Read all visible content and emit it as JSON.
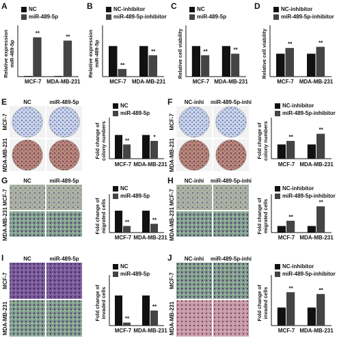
{
  "chart_data": [
    {
      "type": "bar",
      "panel": "A",
      "ylabel": [
        "Relative expression",
        "miR-489-5p"
      ],
      "categories": [
        "MCF-7",
        "MDA-MB-231"
      ],
      "ylim": [
        0,
        70
      ],
      "series": [
        {
          "name": "NC",
          "color": "#111111",
          "values": [
            1,
            1
          ]
        },
        {
          "name": "miR-489-5p",
          "color": "#444444",
          "values": [
            60,
            55
          ],
          "significance": [
            "**",
            "**"
          ]
        }
      ]
    },
    {
      "type": "bar",
      "panel": "B",
      "ylabel": [
        "Relative expression",
        "miR-489-5p"
      ],
      "categories": [
        "MCF-7",
        "MDA-MB-231"
      ],
      "ylim": [
        0,
        1.5
      ],
      "series": [
        {
          "name": "NC-inhibitor",
          "color": "#111111",
          "values": [
            1,
            1
          ]
        },
        {
          "name": "miR-489-5p-inhibitor",
          "color": "#444444",
          "values": [
            0.25,
            0.7
          ],
          "significance": [
            "**",
            "**"
          ]
        }
      ]
    },
    {
      "type": "bar",
      "panel": "C",
      "ylabel": [
        "Relative cell viability"
      ],
      "categories": [
        "MCF-7",
        "MDA-MB-231"
      ],
      "ylim": [
        0,
        1.5
      ],
      "series": [
        {
          "name": "NC",
          "color": "#111111",
          "values": [
            1,
            1
          ]
        },
        {
          "name": "miR-489-5p",
          "color": "#444444",
          "values": [
            0.7,
            0.75
          ],
          "significance": [
            "**",
            "**"
          ]
        }
      ]
    },
    {
      "type": "bar",
      "panel": "D",
      "ylabel": [
        "Relative cell viability"
      ],
      "categories": [
        "MCF-7",
        "MDA-MB-231"
      ],
      "ylim": [
        0,
        2
      ],
      "series": [
        {
          "name": "NC-inhibitor",
          "color": "#111111",
          "values": [
            1,
            1
          ]
        },
        {
          "name": "miR-489-5p-inhibitor",
          "color": "#444444",
          "values": [
            1.25,
            1.3
          ],
          "significance": [
            "**",
            "**"
          ]
        }
      ]
    },
    {
      "type": "bar",
      "panel": "E",
      "ylabel": [
        "Fold change of",
        "colony numbers"
      ],
      "categories": [
        "MCF-7",
        "MDA-MB-231"
      ],
      "ylim": [
        0,
        1.5
      ],
      "image_columns": [
        "NC",
        "miR-489-5p"
      ],
      "image_rows": [
        "MCF-7",
        "MDA-MB-231"
      ],
      "series": [
        {
          "name": "NC",
          "color": "#111111",
          "values": [
            1,
            1
          ]
        },
        {
          "name": "miR-489-5p",
          "color": "#444444",
          "values": [
            0.6,
            0.75
          ],
          "significance": [
            "**",
            "*"
          ]
        }
      ]
    },
    {
      "type": "bar",
      "panel": "F",
      "ylabel": [
        "Fold change of",
        "colony numbers"
      ],
      "categories": [
        "MCF-7",
        "MDA-MB-231"
      ],
      "ylim": [
        0,
        2.5
      ],
      "image_columns": [
        "NC-inhi",
        "miR-489-5p-inhi"
      ],
      "image_rows": [
        "MCF-7",
        "MDA-MB-231"
      ],
      "series": [
        {
          "name": "NC-inhibitor",
          "color": "#111111",
          "values": [
            1,
            1
          ]
        },
        {
          "name": "miR-489-5p-inhibitor",
          "color": "#444444",
          "values": [
            1.25,
            1.75
          ],
          "significance": [
            "**",
            "**"
          ]
        }
      ]
    },
    {
      "type": "bar",
      "panel": "G",
      "ylabel": [
        "Fold change of",
        "migrated cells"
      ],
      "categories": [
        "MCF-7",
        "MDA-MB-231"
      ],
      "ylim": [
        0,
        1.5
      ],
      "image_columns": [
        "NC",
        "miR-489-5p"
      ],
      "image_rows": [
        "MCF-7",
        "MDA-MB-231"
      ],
      "series": [
        {
          "name": "NC",
          "color": "#111111",
          "values": [
            1,
            1
          ]
        },
        {
          "name": "miR-489-5p",
          "color": "#444444",
          "values": [
            0.3,
            0.4
          ],
          "significance": [
            "**",
            "**"
          ]
        }
      ]
    },
    {
      "type": "bar",
      "panel": "H",
      "ylabel": [
        "Fold change of",
        "migrated cells"
      ],
      "categories": [
        "MCF-7",
        "MDA-MB-231"
      ],
      "ylim": [
        0,
        5
      ],
      "image_columns": [
        "NC-inhi",
        "miR-489-5p-inhi"
      ],
      "image_rows": [
        "MCF-7",
        "MDA-MB-231"
      ],
      "series": [
        {
          "name": "NC-inhibitor",
          "color": "#111111",
          "values": [
            1,
            1
          ]
        },
        {
          "name": "miR-489-5p-inhibitor",
          "color": "#444444",
          "values": [
            1.8,
            4
          ],
          "significance": [
            "**",
            "**"
          ]
        }
      ]
    },
    {
      "type": "bar",
      "panel": "I",
      "ylabel": [
        "Fold change of",
        "invaded cells"
      ],
      "categories": [
        "MCF-7",
        "MDA-MB-231"
      ],
      "ylim": [
        0,
        1.5
      ],
      "image_columns": [
        "NC",
        "miR-489-5p"
      ],
      "image_rows": [
        "MCF-7",
        "MDA-MB-231"
      ],
      "series": [
        {
          "name": "NC",
          "color": "#111111",
          "values": [
            1,
            1
          ]
        },
        {
          "name": "miR-489-5p",
          "color": "#444444",
          "values": [
            0.1,
            0.5
          ],
          "significance": [
            "**",
            "**"
          ]
        }
      ]
    },
    {
      "type": "bar",
      "panel": "J",
      "ylabel": [
        "Fold change of",
        "invaded cells"
      ],
      "categories": [
        "MCF-7",
        "MDA-MB-231"
      ],
      "ylim": [
        0,
        2.5
      ],
      "image_columns": [
        "NC-inhi",
        "miR-489-5p-inhi"
      ],
      "image_rows": [
        "MCF-7",
        "MDA-MB-231"
      ],
      "series": [
        {
          "name": "NC-inhibitor",
          "color": "#111111",
          "values": [
            1,
            1
          ]
        },
        {
          "name": "miR-489-5p-inhibitor",
          "color": "#444444",
          "values": [
            1.85,
            1.75
          ],
          "significance": [
            "**",
            "**"
          ]
        }
      ]
    }
  ]
}
